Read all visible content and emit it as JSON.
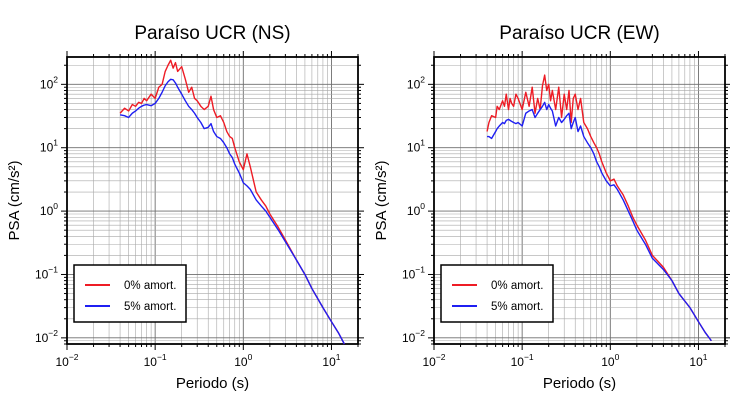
{
  "chart_data": [
    {
      "type": "line",
      "title": "Paraíso UCR (NS)",
      "xlabel": "Periodo (s)",
      "ylabel": "PSA (cm/s²)",
      "xscale": "log",
      "yscale": "log",
      "xlim": [
        0.01,
        20
      ],
      "ylim": [
        0.008,
        270
      ],
      "grid": true,
      "legend_position": "bottom-left",
      "xticks": [
        {
          "base": "10",
          "exp": "−2",
          "value": 0.01
        },
        {
          "base": "10",
          "exp": "−1",
          "value": 0.1
        },
        {
          "base": "10",
          "exp": "0",
          "value": 1
        },
        {
          "base": "10",
          "exp": "1",
          "value": 10
        }
      ],
      "yticks": [
        {
          "base": "10",
          "exp": "−2",
          "value": 0.01
        },
        {
          "base": "10",
          "exp": "−1",
          "value": 0.1
        },
        {
          "base": "10",
          "exp": "0",
          "value": 1
        },
        {
          "base": "10",
          "exp": "1",
          "value": 10
        },
        {
          "base": "10",
          "exp": "2",
          "value": 100
        }
      ],
      "series": [
        {
          "name": "0% amort.",
          "color": "#ee1c25",
          "x": [
            0.04,
            0.045,
            0.05,
            0.055,
            0.06,
            0.065,
            0.07,
            0.075,
            0.08,
            0.09,
            0.1,
            0.11,
            0.12,
            0.13,
            0.14,
            0.15,
            0.16,
            0.17,
            0.18,
            0.2,
            0.22,
            0.24,
            0.26,
            0.28,
            0.3,
            0.33,
            0.36,
            0.4,
            0.43,
            0.46,
            0.5,
            0.55,
            0.6,
            0.65,
            0.7,
            0.75,
            0.8,
            0.9,
            1.0,
            1.1,
            1.2,
            1.4,
            1.6,
            1.8,
            2.0,
            2.5,
            3.0,
            4.0,
            5.0,
            6.0,
            8.0,
            10.0,
            12.0,
            14.0
          ],
          "y": [
            35,
            42,
            38,
            48,
            45,
            52,
            50,
            60,
            55,
            70,
            60,
            90,
            100,
            160,
            200,
            240,
            180,
            220,
            160,
            190,
            120,
            75,
            90,
            60,
            55,
            45,
            40,
            45,
            65,
            40,
            30,
            32,
            25,
            18,
            15,
            14,
            10,
            6,
            4.5,
            8,
            5,
            2,
            1.5,
            1.2,
            0.9,
            0.55,
            0.35,
            0.17,
            0.1,
            0.06,
            0.03,
            0.018,
            0.012,
            0.008
          ]
        },
        {
          "name": "5% amort.",
          "color": "#1f1ff2",
          "x": [
            0.04,
            0.045,
            0.05,
            0.055,
            0.06,
            0.065,
            0.07,
            0.075,
            0.08,
            0.09,
            0.1,
            0.11,
            0.12,
            0.13,
            0.14,
            0.15,
            0.16,
            0.17,
            0.18,
            0.2,
            0.22,
            0.24,
            0.26,
            0.28,
            0.3,
            0.33,
            0.36,
            0.4,
            0.43,
            0.46,
            0.5,
            0.55,
            0.6,
            0.65,
            0.7,
            0.75,
            0.8,
            0.9,
            1.0,
            1.1,
            1.2,
            1.4,
            1.6,
            1.8,
            2.0,
            2.5,
            3.0,
            4.0,
            5.0,
            6.0,
            8.0,
            10.0,
            12.0,
            14.0
          ],
          "y": [
            33,
            32,
            30,
            35,
            38,
            42,
            45,
            47,
            48,
            46,
            50,
            60,
            75,
            95,
            110,
            120,
            118,
            105,
            90,
            70,
            55,
            45,
            40,
            35,
            30,
            25,
            20,
            21,
            24,
            18,
            15,
            14,
            12,
            10,
            8,
            7,
            5.5,
            4,
            2.8,
            2.5,
            2.2,
            1.5,
            1.2,
            1.0,
            0.8,
            0.5,
            0.33,
            0.17,
            0.1,
            0.06,
            0.03,
            0.018,
            0.012,
            0.008
          ]
        }
      ]
    },
    {
      "type": "line",
      "title": "Paraíso UCR (EW)",
      "xlabel": "Periodo (s)",
      "ylabel": "PSA (cm/s²)",
      "xscale": "log",
      "yscale": "log",
      "xlim": [
        0.01,
        20
      ],
      "ylim": [
        0.008,
        270
      ],
      "grid": true,
      "legend_position": "bottom-left",
      "xticks": [
        {
          "base": "10",
          "exp": "−2",
          "value": 0.01
        },
        {
          "base": "10",
          "exp": "−1",
          "value": 0.1
        },
        {
          "base": "10",
          "exp": "0",
          "value": 1
        },
        {
          "base": "10",
          "exp": "1",
          "value": 10
        }
      ],
      "yticks": [
        {
          "base": "10",
          "exp": "−2",
          "value": 0.01
        },
        {
          "base": "10",
          "exp": "−1",
          "value": 0.1
        },
        {
          "base": "10",
          "exp": "0",
          "value": 1
        },
        {
          "base": "10",
          "exp": "1",
          "value": 10
        },
        {
          "base": "10",
          "exp": "2",
          "value": 100
        }
      ],
      "series": [
        {
          "name": "0% amort.",
          "color": "#ee1c25",
          "x": [
            0.04,
            0.042,
            0.045,
            0.05,
            0.052,
            0.055,
            0.06,
            0.063,
            0.066,
            0.07,
            0.073,
            0.076,
            0.08,
            0.085,
            0.09,
            0.1,
            0.11,
            0.12,
            0.13,
            0.14,
            0.15,
            0.16,
            0.17,
            0.18,
            0.19,
            0.2,
            0.21,
            0.22,
            0.24,
            0.26,
            0.28,
            0.3,
            0.32,
            0.34,
            0.36,
            0.38,
            0.4,
            0.43,
            0.46,
            0.5,
            0.55,
            0.6,
            0.65,
            0.7,
            0.75,
            0.8,
            0.9,
            1.0,
            1.1,
            1.2,
            1.4,
            1.6,
            1.8,
            2.0,
            2.5,
            3.0,
            4.0,
            5.0,
            6.0,
            8.0,
            10.0,
            12.0,
            14.0
          ],
          "y": [
            18,
            25,
            32,
            30,
            45,
            40,
            55,
            45,
            70,
            40,
            60,
            50,
            45,
            70,
            60,
            40,
            75,
            45,
            90,
            35,
            60,
            40,
            95,
            140,
            80,
            100,
            55,
            80,
            40,
            90,
            30,
            70,
            40,
            80,
            25,
            60,
            70,
            40,
            60,
            25,
            20,
            15,
            12,
            10,
            8,
            6,
            4,
            3,
            3.2,
            2.5,
            1.8,
            1.2,
            0.8,
            0.6,
            0.35,
            0.2,
            0.13,
            0.08,
            0.05,
            0.03,
            0.018,
            0.012,
            0.009
          ]
        },
        {
          "name": "5% amort.",
          "color": "#1f1ff2",
          "x": [
            0.04,
            0.042,
            0.045,
            0.05,
            0.052,
            0.055,
            0.06,
            0.063,
            0.066,
            0.07,
            0.073,
            0.076,
            0.08,
            0.085,
            0.09,
            0.1,
            0.11,
            0.12,
            0.13,
            0.14,
            0.15,
            0.16,
            0.17,
            0.18,
            0.19,
            0.2,
            0.21,
            0.22,
            0.24,
            0.26,
            0.28,
            0.3,
            0.32,
            0.34,
            0.36,
            0.38,
            0.4,
            0.43,
            0.46,
            0.5,
            0.55,
            0.6,
            0.65,
            0.7,
            0.75,
            0.8,
            0.9,
            1.0,
            1.1,
            1.2,
            1.4,
            1.6,
            1.8,
            2.0,
            2.5,
            3.0,
            4.0,
            5.0,
            6.0,
            8.0,
            10.0,
            12.0,
            14.0
          ],
          "y": [
            15,
            15,
            14,
            18,
            20,
            22,
            25,
            24,
            27,
            28,
            27,
            26,
            25,
            24,
            25,
            22,
            35,
            38,
            40,
            30,
            35,
            40,
            45,
            52,
            40,
            48,
            42,
            38,
            22,
            30,
            25,
            28,
            32,
            35,
            20,
            25,
            30,
            18,
            22,
            15,
            12,
            10,
            8,
            6,
            5,
            4,
            3,
            2.5,
            2.6,
            2.2,
            1.5,
            1.0,
            0.7,
            0.5,
            0.3,
            0.18,
            0.12,
            0.08,
            0.05,
            0.03,
            0.018,
            0.012,
            0.009
          ]
        }
      ]
    }
  ]
}
